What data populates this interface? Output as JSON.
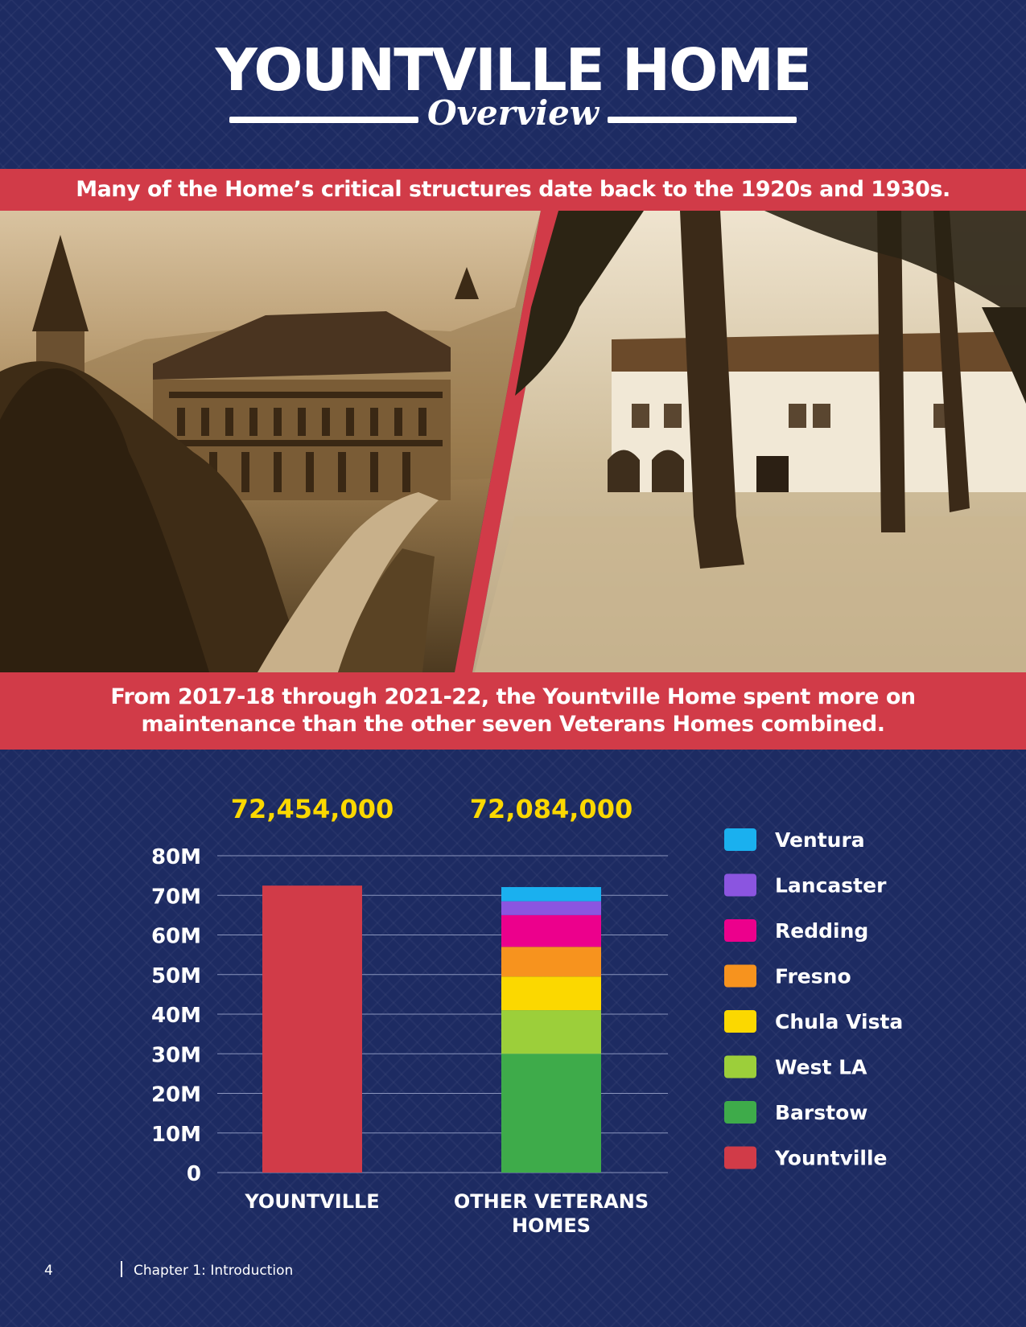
{
  "header": {
    "title": "YOUNTVILLE HOME",
    "subtitle": "Overview"
  },
  "banner_top": "Many of the Home’s critical structures date back to the 1920s and 1930s.",
  "banner_bottom_line1": "From 2017-18 through 2021-22, the Yountville Home spent more on",
  "banner_bottom_line2": "maintenance than the other seven Veterans Homes combined.",
  "chart_data": {
    "type": "bar",
    "stacked": true,
    "categories": [
      "YOUNTVILLE",
      "OTHER VETERANS HOMES"
    ],
    "category_label_lines": [
      [
        "YOUNTVILLE"
      ],
      [
        "OTHER VETERANS",
        "HOMES"
      ]
    ],
    "totals": [
      "72,454,000",
      "72,084,000"
    ],
    "yticks": [
      "0",
      "10M",
      "20M",
      "30M",
      "40M",
      "50M",
      "60M",
      "70M",
      "80M"
    ],
    "ylim": [
      0,
      80000000
    ],
    "grid": true,
    "legend_position": "right",
    "series": [
      {
        "name": "Yountville",
        "color": "#d13b48",
        "values": [
          72454000,
          0
        ]
      },
      {
        "name": "Barstow",
        "color": "#3eab4a",
        "values": [
          0,
          30000000
        ]
      },
      {
        "name": "West LA",
        "color": "#9ccf3a",
        "values": [
          0,
          11000000
        ]
      },
      {
        "name": "Chula Vista",
        "color": "#fbd800",
        "values": [
          0,
          8500000
        ]
      },
      {
        "name": "Fresno",
        "color": "#f7931e",
        "values": [
          0,
          7500000
        ]
      },
      {
        "name": "Redding",
        "color": "#ec008c",
        "values": [
          0,
          8000000
        ]
      },
      {
        "name": "Lancaster",
        "color": "#8b55e0",
        "values": [
          0,
          3500000
        ]
      },
      {
        "name": "Ventura",
        "color": "#1ab0ef",
        "values": [
          0,
          3584000
        ]
      }
    ],
    "legend_order": [
      "Ventura",
      "Lancaster",
      "Redding",
      "Fresno",
      "Chula Vista",
      "West LA",
      "Barstow",
      "Yountville"
    ],
    "total_color": "#fbd800"
  },
  "footer": {
    "page_number": "4",
    "chapter": "Chapter 1: Introduction"
  }
}
